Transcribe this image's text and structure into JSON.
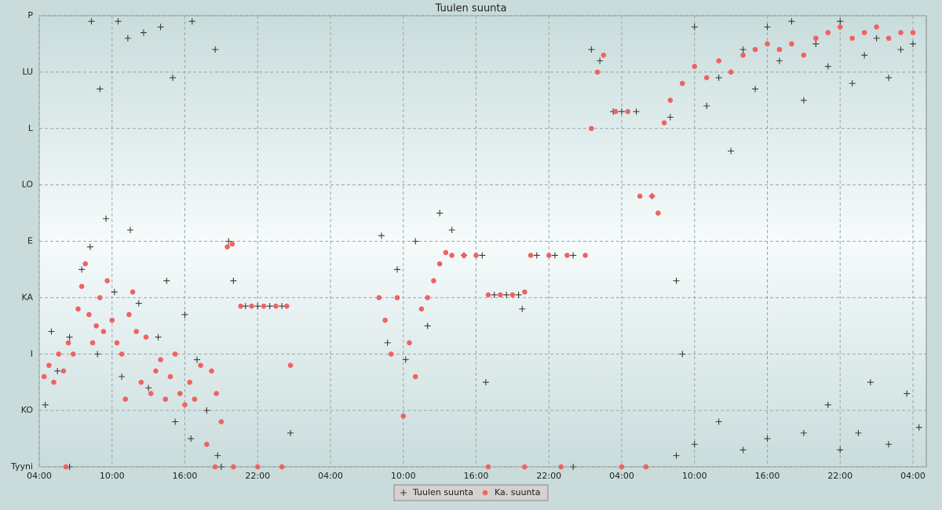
{
  "chart_data": {
    "type": "scatter",
    "title": "Tuulen suunta",
    "xlim": [
      0,
      73.1
    ],
    "ylim": [
      0,
      8
    ],
    "grid": true,
    "xticks": [
      {
        "value": 0,
        "label": "04:00"
      },
      {
        "value": 6,
        "label": "10:00"
      },
      {
        "value": 12,
        "label": "16:00"
      },
      {
        "value": 18,
        "label": "22:00"
      },
      {
        "value": 24,
        "label": "04:00"
      },
      {
        "value": 30,
        "label": "10:00"
      },
      {
        "value": 36,
        "label": "16:00"
      },
      {
        "value": 42,
        "label": "22:00"
      },
      {
        "value": 48,
        "label": "04:00"
      },
      {
        "value": 54,
        "label": "10:00"
      },
      {
        "value": 60,
        "label": "16:00"
      },
      {
        "value": 66,
        "label": "22:00"
      },
      {
        "value": 72,
        "label": "04:00"
      }
    ],
    "yticks": [
      {
        "value": 0,
        "label": "Tyyni"
      },
      {
        "value": 1,
        "label": "KO"
      },
      {
        "value": 2,
        "label": "I"
      },
      {
        "value": 3,
        "label": "KA"
      },
      {
        "value": 4,
        "label": "E"
      },
      {
        "value": 5,
        "label": "LO"
      },
      {
        "value": 6,
        "label": "L"
      },
      {
        "value": 7,
        "label": "LU"
      },
      {
        "value": 8,
        "label": "P"
      }
    ],
    "legend": "bottom",
    "series": [
      {
        "name": "Tuulen suunta",
        "color": "#3a3a3a",
        "marker": "plus",
        "x": [
          0.5,
          1.0,
          1.5,
          2.5,
          3.5,
          4.2,
          4.8,
          5.5,
          6.2,
          6.8,
          7.5,
          8.2,
          9.0,
          9.8,
          10.5,
          11.2,
          12.0,
          12.5,
          13.0,
          13.8,
          14.7,
          15.6,
          16.0,
          17.0,
          18.0,
          19.0,
          20.0,
          20.7,
          4.3,
          5.0,
          6.5,
          7.3,
          8.6,
          10.0,
          11.0,
          12.6,
          14.5,
          28.2,
          28.7,
          29.5,
          30.2,
          31.0,
          32.0,
          33.0,
          34.0,
          35.0,
          36.5,
          37.5,
          38.5,
          39.5,
          39.8,
          36.8,
          41.0,
          42.5,
          44.0,
          45.5,
          46.2,
          47.3,
          48.0,
          49.2,
          50.5,
          52.0,
          52.5,
          53.0,
          54.0,
          55.0,
          56.0,
          57.0,
          58.0,
          59.0,
          60.0,
          61.0,
          62.0,
          63.0,
          64.0,
          65.0,
          66.0,
          67.0,
          68.0,
          69.0,
          70.0,
          71.0,
          72.0,
          52.5,
          54.0,
          56.0,
          58.0,
          60.0,
          63.0,
          65.0,
          66.0,
          67.5,
          68.5,
          70.0,
          71.5,
          72.5,
          2.5,
          15.0,
          44.0
        ],
        "values": [
          1.1,
          2.4,
          1.7,
          2.3,
          3.5,
          3.9,
          2.0,
          4.4,
          3.1,
          1.6,
          4.2,
          2.9,
          1.4,
          2.3,
          3.3,
          0.8,
          2.7,
          0.5,
          1.9,
          1.0,
          0.2,
          4.0,
          3.3,
          2.85,
          2.85,
          2.85,
          2.85,
          0.6,
          7.9,
          6.7,
          7.9,
          7.6,
          7.7,
          7.8,
          6.9,
          7.9,
          7.4,
          4.1,
          2.2,
          3.5,
          1.9,
          4.0,
          2.5,
          4.5,
          4.2,
          3.75,
          3.75,
          3.05,
          3.05,
          3.05,
          2.8,
          1.5,
          3.75,
          3.75,
          3.75,
          7.4,
          7.2,
          6.3,
          6.3,
          6.3,
          4.8,
          6.2,
          3.3,
          2.0,
          7.8,
          6.4,
          6.9,
          5.6,
          7.4,
          6.7,
          7.8,
          7.2,
          7.9,
          6.5,
          7.5,
          7.1,
          7.9,
          6.8,
          7.3,
          7.6,
          6.9,
          7.4,
          7.5,
          0.2,
          0.4,
          0.8,
          0.3,
          0.5,
          0.6,
          1.1,
          0.3,
          0.6,
          1.5,
          0.4,
          1.3,
          0.7,
          0,
          0,
          0
        ]
      },
      {
        "name": "Ka. suunta",
        "color": "#f06262",
        "marker": "dot",
        "x": [
          0.4,
          0.8,
          1.2,
          1.6,
          2.0,
          2.4,
          2.8,
          3.2,
          3.5,
          3.8,
          4.1,
          4.4,
          4.7,
          5.0,
          5.3,
          5.6,
          6.0,
          6.4,
          6.8,
          7.1,
          7.4,
          7.7,
          8.0,
          8.4,
          8.8,
          9.2,
          9.6,
          10.0,
          10.4,
          10.8,
          11.2,
          11.6,
          12.0,
          12.4,
          12.8,
          13.3,
          13.8,
          14.2,
          14.6,
          15.0,
          15.5,
          15.9,
          16.6,
          17.5,
          18.5,
          19.5,
          20.4,
          20.7,
          28.0,
          28.5,
          29.0,
          29.5,
          30.0,
          30.5,
          31.0,
          31.5,
          32.0,
          32.5,
          33.0,
          33.5,
          34.0,
          35.0,
          36.0,
          37.0,
          38.0,
          39.0,
          40.0,
          40.5,
          42.0,
          43.5,
          45.0,
          45.5,
          46.0,
          46.5,
          47.5,
          48.5,
          49.5,
          50.5,
          51.0,
          51.5,
          52.0,
          53.0,
          54.0,
          55.0,
          56.0,
          57.0,
          58.0,
          59.0,
          60.0,
          61.0,
          62.0,
          63.0,
          64.0,
          65.0,
          66.0,
          67.0,
          68.0,
          69.0,
          70.0,
          71.0,
          72.0,
          2.2,
          14.5,
          16.0,
          18.0,
          20.0,
          37.0,
          40.0,
          43.0,
          48.0,
          50.0
        ],
        "values": [
          1.6,
          1.8,
          1.5,
          2.0,
          1.7,
          2.2,
          2.0,
          2.8,
          3.2,
          3.6,
          2.7,
          2.2,
          2.5,
          3.0,
          2.4,
          3.3,
          2.6,
          2.2,
          2.0,
          1.2,
          2.7,
          3.1,
          2.4,
          1.5,
          2.3,
          1.3,
          1.7,
          1.9,
          1.2,
          1.6,
          2.0,
          1.3,
          1.1,
          1.5,
          1.2,
          1.8,
          0.4,
          1.7,
          1.3,
          0.8,
          3.9,
          3.95,
          2.85,
          2.85,
          2.85,
          2.85,
          2.85,
          1.8,
          3.0,
          2.6,
          2.0,
          3.0,
          0.9,
          2.2,
          1.6,
          2.8,
          3.0,
          3.3,
          3.6,
          3.8,
          3.75,
          3.75,
          3.75,
          3.05,
          3.05,
          3.05,
          3.1,
          3.75,
          3.75,
          3.75,
          3.75,
          6.0,
          7.0,
          7.3,
          6.3,
          6.3,
          4.8,
          4.8,
          4.5,
          6.1,
          6.5,
          6.8,
          7.1,
          6.9,
          7.2,
          7.0,
          7.3,
          7.4,
          7.5,
          7.4,
          7.5,
          7.3,
          7.6,
          7.7,
          7.8,
          7.6,
          7.7,
          7.8,
          7.6,
          7.7,
          7.7,
          0,
          0,
          0,
          0,
          0,
          0,
          0,
          0,
          0,
          0
        ]
      }
    ]
  }
}
